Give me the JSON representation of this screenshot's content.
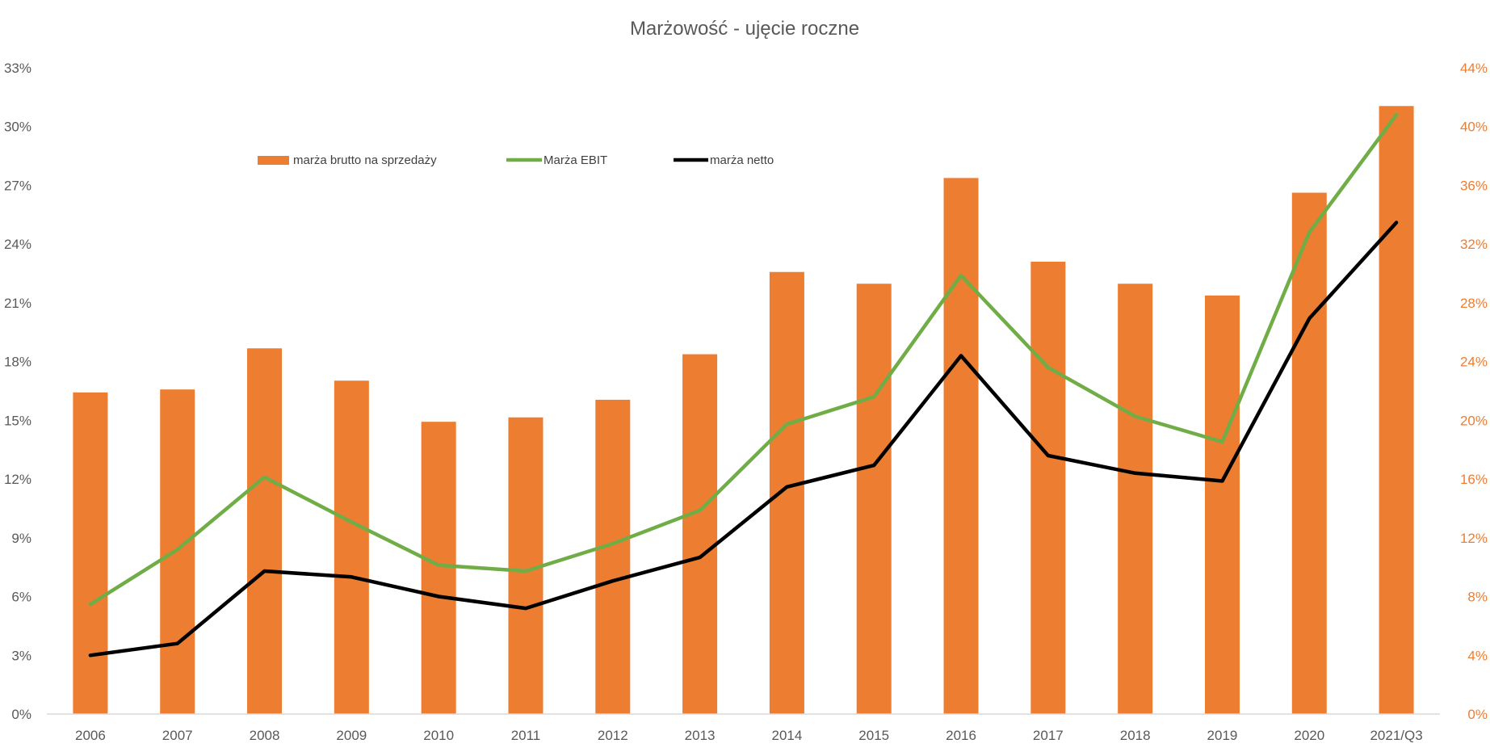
{
  "chart_data": {
    "type": "bar",
    "title": "Marżowość - ujęcie roczne",
    "categories": [
      "2006",
      "2007",
      "2008",
      "2009",
      "2010",
      "2011",
      "2012",
      "2013",
      "2014",
      "2015",
      "2016",
      "2017",
      "2018",
      "2019",
      "2020",
      "2021/Q3"
    ],
    "y_left": {
      "min": 0,
      "max": 33,
      "step": 3,
      "tick_labels": [
        "0%",
        "3%",
        "6%",
        "9%",
        "12%",
        "15%",
        "18%",
        "21%",
        "24%",
        "27%",
        "30%",
        "33%"
      ],
      "color": "#595959"
    },
    "y_right": {
      "min": 0,
      "max": 44,
      "step": 4,
      "tick_labels": [
        "0%",
        "4%",
        "8%",
        "12%",
        "16%",
        "20%",
        "24%",
        "28%",
        "32%",
        "36%",
        "40%",
        "44%"
      ],
      "color": "#ED7D31"
    },
    "series": [
      {
        "name": "marża brutto na sprzedaży",
        "type": "bar",
        "axis": "right",
        "color": "#ED7D31",
        "values": [
          21.9,
          22.1,
          24.9,
          22.7,
          19.9,
          20.2,
          21.4,
          24.5,
          30.1,
          29.3,
          36.5,
          30.8,
          29.3,
          28.5,
          35.5,
          41.4
        ]
      },
      {
        "name": "Marża EBIT",
        "type": "line",
        "axis": "left",
        "color": "#70AD47",
        "values": [
          5.6,
          8.4,
          12.1,
          9.8,
          7.6,
          7.3,
          8.7,
          10.4,
          14.8,
          16.2,
          22.4,
          17.7,
          15.2,
          13.9,
          24.6,
          30.6
        ]
      },
      {
        "name": "marża netto",
        "type": "line",
        "axis": "left",
        "color": "#000000",
        "values": [
          3.0,
          3.6,
          7.3,
          7.0,
          6.0,
          5.4,
          6.8,
          8.0,
          11.6,
          12.7,
          18.3,
          13.2,
          12.3,
          11.9,
          20.2,
          25.1
        ]
      }
    ],
    "legend_position": "top-left",
    "grid": false
  }
}
